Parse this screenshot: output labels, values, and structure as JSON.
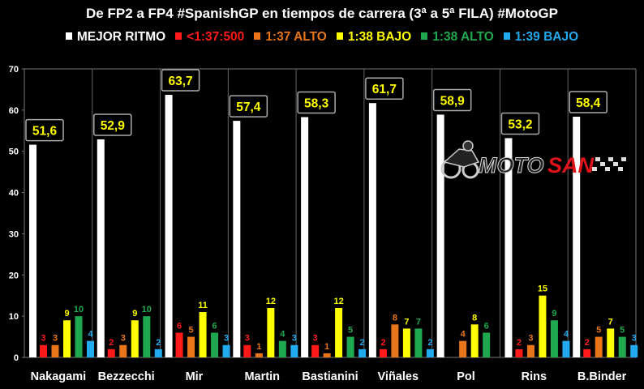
{
  "title": "De FP2 a FP4 #SpanishGP en tiempos de carrera (3ª a 5ª FILA) #MotoGP",
  "watermark": {
    "text_a": "MOTO",
    "text_b": "SAN",
    "logo_icon": "motorcycle-rider-icon"
  },
  "chart_data": {
    "type": "bar",
    "title": "De FP2 a FP4 #SpanishGP en tiempos de carrera (3ª a 5ª FILA) #MotoGP",
    "categories": [
      "Nakagami",
      "Bezzecchi",
      "Mir",
      "Martin",
      "Bastianini",
      "Viñales",
      "Pol",
      "Rins",
      "B.Binder"
    ],
    "ylim": [
      0,
      70
    ],
    "yticks": [
      0,
      10,
      20,
      30,
      40,
      50,
      60,
      70
    ],
    "grid": false,
    "legend_position": "top",
    "series": [
      {
        "name": "MEJOR RITMO",
        "color": "#ffffff",
        "values": [
          51.6,
          52.9,
          63.7,
          57.4,
          58.3,
          61.7,
          58.9,
          53.2,
          58.4
        ],
        "labels": [
          "51,6",
          "52,9",
          "63,7",
          "57,4",
          "58,3",
          "61,7",
          "58,9",
          "53,2",
          "58,4"
        ]
      },
      {
        "name": "<1:37:500",
        "color": "#ff1a1a",
        "values": [
          3,
          2,
          6,
          3,
          3,
          2,
          0,
          2,
          2
        ]
      },
      {
        "name": "1:37 ALTO",
        "color": "#e8751a",
        "values": [
          3,
          3,
          5,
          1,
          1,
          8,
          4,
          3,
          5
        ]
      },
      {
        "name": "1:38 BAJO",
        "color": "#ffff00",
        "values": [
          9,
          9,
          11,
          12,
          12,
          7,
          8,
          15,
          7
        ]
      },
      {
        "name": "1:38 ALTO",
        "color": "#1fa84f",
        "values": [
          10,
          10,
          6,
          4,
          5,
          7,
          6,
          9,
          5
        ]
      },
      {
        "name": "1:39 BAJO",
        "color": "#22aaee",
        "values": [
          4,
          2,
          3,
          3,
          2,
          2,
          0,
          4,
          3
        ]
      }
    ]
  }
}
